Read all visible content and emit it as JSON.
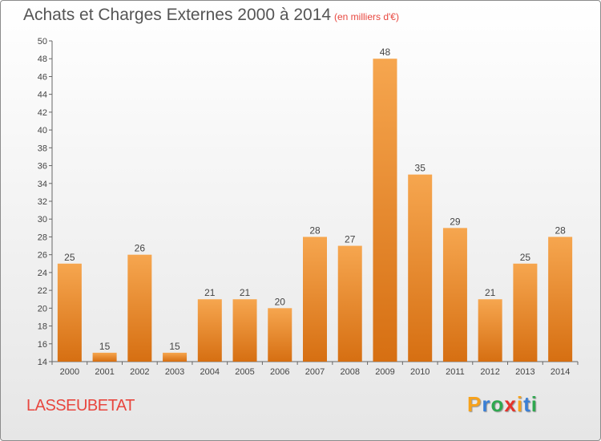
{
  "header": {
    "title": "Achats et Charges Externes 2000 à 2014",
    "subtitle": "(en milliers d'€)"
  },
  "footer": {
    "commune": "LASSEUBETAT",
    "logo_letters": [
      "P",
      "r",
      "o",
      "x",
      "i",
      "t",
      "i"
    ],
    "logo_colors": [
      "#f7a21b",
      "#3a7fd5",
      "#2fa84f",
      "#e4332b",
      "#f7a21b",
      "#3a7fd5",
      "#2fa84f"
    ]
  },
  "chart_data": {
    "type": "bar",
    "title": "Achats et Charges Externes 2000 à 2014",
    "subtitle": "(en milliers d'€)",
    "categories": [
      "2000",
      "2001",
      "2002",
      "2003",
      "2004",
      "2005",
      "2006",
      "2007",
      "2008",
      "2009",
      "2010",
      "2011",
      "2012",
      "2013",
      "2014"
    ],
    "values": [
      25,
      15,
      26,
      15,
      21,
      21,
      20,
      28,
      27,
      48,
      35,
      29,
      21,
      25,
      28
    ],
    "ylim": [
      14,
      50
    ],
    "ytick_step": 2,
    "grid": false,
    "bar_color_light": "#f6a64f",
    "bar_color_dark": "#d66f12"
  }
}
